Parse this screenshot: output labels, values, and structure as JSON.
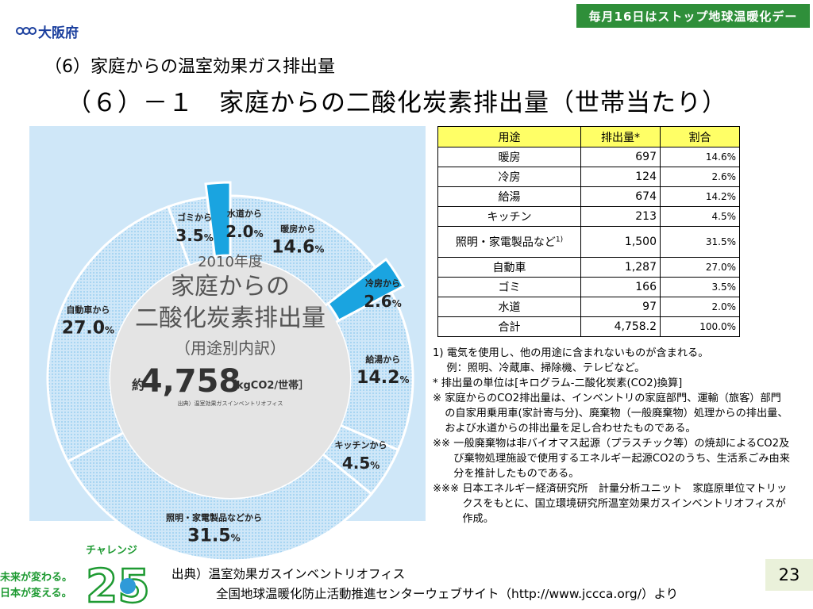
{
  "header": {
    "org_name": "大阪府",
    "banner_text": "毎月16日はストップ地球温暖化デー",
    "section_title": "（6）家庭からの温室効果ガス排出量",
    "main_title": "（６）－１　家庭からの二酸化炭素排出量（世帯当たり）"
  },
  "chart_data": {
    "type": "pie",
    "donut": true,
    "center": {
      "year": "2010年度",
      "title_line1": "家庭からの",
      "title_line2": "二酸化炭素排出量",
      "subtitle": "（用途別内訳）",
      "total_prefix": "約",
      "total_value": "4,758",
      "total_unit": "［kgCO2/世帯］",
      "source": "出典）温室効果ガスインベントリオフィス"
    },
    "slices": [
      {
        "name": "暖房から",
        "value": 14.6,
        "label": "14.6",
        "unit": "%",
        "color": "#cfe7f8",
        "highlight": false
      },
      {
        "name": "冷房から",
        "value": 2.6,
        "label": "2.6",
        "unit": "%",
        "color": "#1aa4e0",
        "highlight": true
      },
      {
        "name": "給湯から",
        "value": 14.2,
        "label": "14.2",
        "unit": "%",
        "color": "#cfe7f8",
        "highlight": false
      },
      {
        "name": "キッチンから",
        "value": 4.5,
        "label": "4.5",
        "unit": "%",
        "color": "#cfe7f8",
        "highlight": false
      },
      {
        "name": "照明・家電製品などから",
        "value": 31.5,
        "label": "31.5",
        "unit": "%",
        "color": "#cfe7f8",
        "highlight": false
      },
      {
        "name": "自動車から",
        "value": 27.0,
        "label": "27.0",
        "unit": "%",
        "color": "#cfe7f8",
        "highlight": false
      },
      {
        "name": "ゴミから",
        "value": 3.5,
        "label": "3.5",
        "unit": "%",
        "color": "#cfe7f8",
        "highlight": false
      },
      {
        "name": "水道から",
        "value": 2.0,
        "label": "2.0",
        "unit": "%",
        "color": "#1aa4e0",
        "highlight": true
      }
    ]
  },
  "table": {
    "headers": [
      "用途",
      "排出量*",
      "割合"
    ],
    "rows": [
      [
        "暖房",
        "697",
        "14.6%"
      ],
      [
        "冷房",
        "124",
        "2.6%"
      ],
      [
        "給湯",
        "674",
        "14.2%"
      ],
      [
        "キッチン",
        "213",
        "4.5%"
      ],
      [
        "照明・家電製品など",
        "1,500",
        "31.5%"
      ],
      [
        "自動車",
        "1,287",
        "27.0%"
      ],
      [
        "ゴミ",
        "166",
        "3.5%"
      ],
      [
        "水道",
        "97",
        "2.0%"
      ],
      [
        "合計",
        "4,758.2",
        "100.0%"
      ]
    ],
    "footnote_mark": "1)"
  },
  "notes": [
    {
      "mark": "1) ",
      "text": "電気を使用し、他の用途に含まれないものが含まれる。"
    },
    {
      "mark": "",
      "text": "　 例：照明、冷蔵庫、掃除機、テレビなど。"
    },
    {
      "mark": "* ",
      "text": "排出量の単位は[キログラム-二酸化炭素(CO2)換算]"
    },
    {
      "mark": "※ ",
      "text": "家庭からのCO2排出量は、インベントリの家庭部門、運輸（旅客）部門の自家用乗用車(家計寄与分)、廃棄物（一般廃棄物）処理からの排出量、および水道からの排出量を足し合わせたものである。"
    },
    {
      "mark": "※※ ",
      "text": "一般廃棄物は非バイオマス起源（プラスチック等）の焼却によるCO2及び棄物処理施設で使用するエネルギー起源CO2のうち、生活系ごみ由来分を推計したものである。"
    },
    {
      "mark": "※※※ ",
      "text": "日本エネルギー経済研究所　計量分析ユニット　家庭原単位マトリックスをもとに、国立環境研究所温室効果ガスインベントリオフィスが作成。"
    }
  ],
  "challenge": {
    "label": "チャレンジ",
    "line1": "未来が変わる。",
    "line2": "日本が変える。",
    "number": "25"
  },
  "source": {
    "line1": "出典）温室効果ガスインベントリオフィス",
    "line2": "全国地球温暖化防止活動推進センターウェブサイト（http://www.jccca.org/）より"
  },
  "page_number": "23",
  "colors": {
    "ring_light": "#cfe7f8",
    "ring_highlight": "#1aa4e0",
    "dot_blue": "#8cc8ef",
    "table_header": "#ffff66",
    "banner_green": "#2f8f3a",
    "page_bg": "#eaf1da"
  }
}
